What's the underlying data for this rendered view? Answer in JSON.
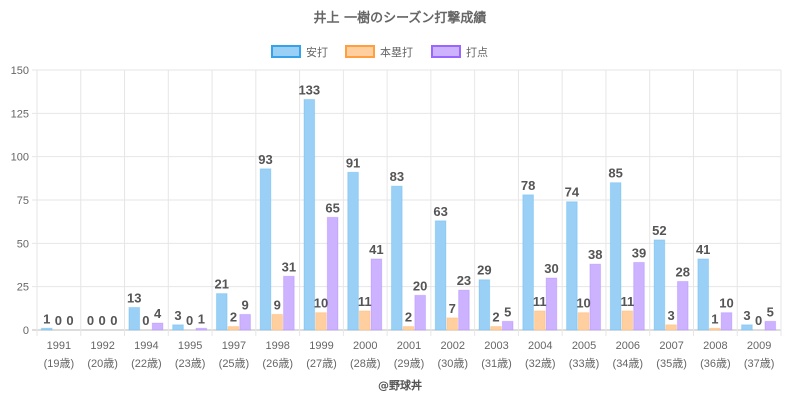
{
  "chart_data": {
    "type": "bar",
    "title": "井上 一樹のシーズン打撃成績",
    "categories": [
      "1991",
      "1992",
      "1994",
      "1995",
      "1997",
      "1998",
      "1999",
      "2000",
      "2001",
      "2002",
      "2003",
      "2004",
      "2005",
      "2006",
      "2007",
      "2008",
      "2009"
    ],
    "sublabels": [
      "(19歳)",
      "(20歳)",
      "(22歳)",
      "(23歳)",
      "(25歳)",
      "(26歳)",
      "(27歳)",
      "(28歳)",
      "(29歳)",
      "(30歳)",
      "(31歳)",
      "(32歳)",
      "(33歳)",
      "(34歳)",
      "(35歳)",
      "(36歳)",
      "(37歳)"
    ],
    "series": [
      {
        "name": "安打",
        "color": "#9ad0f5",
        "border": "#36a2eb",
        "values": [
          1,
          0,
          13,
          3,
          21,
          93,
          133,
          91,
          83,
          63,
          29,
          78,
          74,
          85,
          52,
          41,
          3
        ]
      },
      {
        "name": "本塁打",
        "color": "#ffcf9f",
        "border": "#ff9f40",
        "values": [
          0,
          0,
          0,
          0,
          2,
          9,
          10,
          11,
          2,
          7,
          2,
          11,
          10,
          11,
          3,
          1,
          0
        ]
      },
      {
        "name": "打点",
        "color": "#ccb2ff",
        "border": "#9966ff",
        "values": [
          0,
          0,
          4,
          1,
          9,
          31,
          65,
          41,
          20,
          23,
          5,
          30,
          38,
          39,
          28,
          10,
          5
        ]
      }
    ],
    "yticks": [
      "0",
      "25",
      "50",
      "75",
      "100",
      "125",
      "150"
    ],
    "ylim": [
      0,
      150
    ],
    "legend_position": "top",
    "grid": true,
    "watermark": "@野球丼"
  }
}
